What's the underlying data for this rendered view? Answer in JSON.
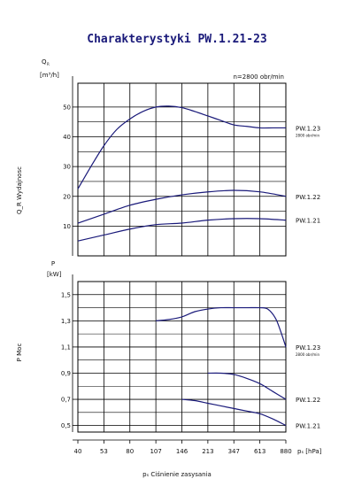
{
  "chart_data": [
    {
      "type": "line",
      "title": "Charakterystyki PW.1.21-23",
      "subtitle": "n=2800 obr/min",
      "ylabel": "Q_R Wydajnosc",
      "yunit": "[m³/h]",
      "y_symbol": "Q",
      "y_symbol_sub": "R",
      "ylim": [
        0,
        58
      ],
      "yticks": [
        10,
        20,
        30,
        40,
        50
      ],
      "x_categories": [
        "40",
        "53",
        "80",
        "107",
        "146",
        "213",
        "347",
        "613",
        "880"
      ],
      "grid": true,
      "series": [
        {
          "name": "PW.1.23",
          "note": "2800 obr/min",
          "x": [
            0,
            0.5,
            1,
            1.5,
            2,
            2.5,
            3,
            3.5,
            4,
            4.5,
            5,
            5.5,
            6,
            6.5,
            7,
            7.5,
            8
          ],
          "values": [
            22.5,
            30,
            37,
            42.5,
            46,
            48.5,
            50,
            50.3,
            49.8,
            48.5,
            47,
            45.5,
            44,
            43.5,
            43,
            43,
            43
          ]
        },
        {
          "name": "PW.1.22",
          "x": [
            0,
            1,
            2,
            3,
            4,
            5,
            6,
            7,
            8
          ],
          "values": [
            11,
            14,
            17,
            19,
            20.5,
            21.5,
            22,
            21.5,
            20
          ]
        },
        {
          "name": "PW.1.21",
          "x": [
            0,
            1,
            2,
            3,
            4,
            5,
            6,
            7,
            8
          ],
          "values": [
            5,
            7,
            9,
            10.5,
            11,
            12,
            12.5,
            12.5,
            12
          ]
        }
      ]
    },
    {
      "type": "line",
      "ylabel": "P Moc",
      "yunit": "[kW]",
      "y_symbol": "P",
      "ylim": [
        0.45,
        1.6
      ],
      "yticks": [
        0.5,
        0.7,
        0.9,
        1.1,
        1.3,
        1.5
      ],
      "ytick_labels": [
        "0,5",
        "0,7",
        "0,9",
        "1,1",
        "1,3",
        "1,5"
      ],
      "xlabel": "pₛ Ciśnienie zasysania",
      "xunit": "pₛ [hPa]",
      "x_categories": [
        "40",
        "53",
        "80",
        "107",
        "146",
        "213",
        "347",
        "613",
        "880"
      ],
      "grid": true,
      "series": [
        {
          "name": "PW.1.23",
          "note": "2800 obr/min",
          "x": [
            3,
            3.5,
            4,
            4.5,
            5,
            5.5,
            6,
            6.5,
            7,
            7.3,
            7.6,
            7.8,
            8
          ],
          "values": [
            1.3,
            1.31,
            1.33,
            1.37,
            1.39,
            1.4,
            1.4,
            1.4,
            1.4,
            1.39,
            1.32,
            1.22,
            1.1
          ]
        },
        {
          "name": "PW.1.22",
          "x": [
            5,
            5.5,
            6,
            6.5,
            7,
            7.5,
            8
          ],
          "values": [
            0.9,
            0.9,
            0.89,
            0.86,
            0.82,
            0.76,
            0.7
          ]
        },
        {
          "name": "PW.1.21",
          "x": [
            4,
            4.5,
            5,
            5.5,
            6,
            6.5,
            7,
            7.5,
            8
          ],
          "values": [
            0.7,
            0.69,
            0.67,
            0.65,
            0.63,
            0.61,
            0.59,
            0.55,
            0.5
          ]
        }
      ]
    }
  ],
  "colors": {
    "curve": "#1a1a7a",
    "grid": "#000000",
    "title": "#1a1a7a"
  }
}
